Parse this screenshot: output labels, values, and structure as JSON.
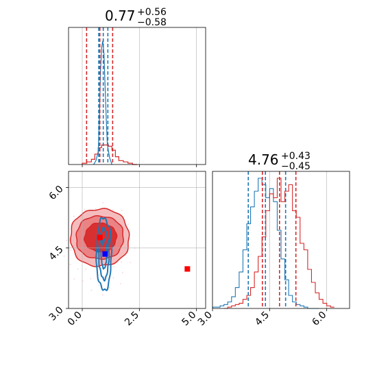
{
  "colors": {
    "red": "#d62728",
    "blue": "#1f77b4",
    "grid": "#b0b0b0",
    "fill_light": "#f4b5b6",
    "fill_mid": "#ea7c7e",
    "fill_dark": "#d62728",
    "blue_marker": "#0000ff",
    "red_marker": "#ff0000"
  },
  "panels": {
    "p1_title": {
      "main": "0.77",
      "sup": "+0.56",
      "sub": "−0.58"
    },
    "p2_title": {
      "main": "4.76",
      "sup": "+0.43",
      "sub": "−0.45"
    }
  },
  "chart_data": [
    {
      "type": "area",
      "panel": "top-left",
      "xlim": [
        -0.6,
        5.4
      ],
      "x_ticks": [
        0.0,
        2.5,
        5.0
      ],
      "grid": true,
      "series": [
        {
          "color": "red",
          "style": "step",
          "x": [
            0.0,
            0.2,
            0.4,
            0.55,
            0.7,
            0.85,
            1.0,
            1.15,
            1.3,
            1.45,
            1.6,
            1.8,
            2.0,
            2.2
          ],
          "values": [
            0.01,
            0.02,
            0.04,
            0.08,
            0.13,
            0.15,
            0.15,
            0.14,
            0.11,
            0.06,
            0.03,
            0.02,
            0.01,
            0.0
          ]
        },
        {
          "color": "blue",
          "style": "line",
          "x": [
            0.5,
            0.6,
            0.7,
            0.75,
            0.8,
            0.85,
            0.9,
            0.95,
            1.0,
            1.05,
            1.1,
            1.2,
            1.3
          ],
          "values": [
            0.0,
            0.03,
            0.1,
            0.35,
            0.72,
            0.9,
            0.95,
            0.85,
            0.6,
            0.35,
            0.15,
            0.05,
            0.0
          ]
        }
      ],
      "quantile_lines": [
        {
          "color": "red",
          "x": [
            0.19,
            0.77,
            1.33
          ]
        },
        {
          "color": "blue",
          "x": [
            0.72,
            0.92,
            1.12
          ]
        }
      ]
    },
    {
      "type": "area",
      "panel": "bottom-left",
      "xlim": [
        -0.6,
        5.4
      ],
      "ylim": [
        3.0,
        6.4
      ],
      "x_ticks": [
        0.0,
        2.5,
        5.0
      ],
      "y_ticks": [
        3.0,
        4.5,
        6.0
      ],
      "grid": true,
      "markers": [
        {
          "color": "red_marker",
          "x": 0.77,
          "y": 4.76
        },
        {
          "color": "blue_marker",
          "x": 1.0,
          "y": 4.35
        },
        {
          "color": "red_marker",
          "x": 4.6,
          "y": 3.98
        }
      ]
    },
    {
      "type": "area",
      "panel": "bottom-right",
      "xlim": [
        3.0,
        6.6
      ],
      "x_ticks": [
        3.0,
        4.5,
        6.0
      ],
      "grid": true,
      "series": [
        {
          "color": "blue",
          "style": "step",
          "x": [
            3.0,
            3.1,
            3.2,
            3.3,
            3.4,
            3.5,
            3.6,
            3.7,
            3.8,
            3.9,
            4.0,
            4.1,
            4.2,
            4.3,
            4.4,
            4.5,
            4.6,
            4.7,
            4.8,
            4.9,
            5.0,
            5.1,
            5.2,
            5.3,
            5.4,
            5.5,
            5.6,
            5.7
          ],
          "values": [
            0.01,
            0.01,
            0.02,
            0.03,
            0.05,
            0.09,
            0.16,
            0.28,
            0.45,
            0.65,
            0.78,
            0.9,
            1.0,
            0.95,
            0.85,
            0.92,
            0.82,
            0.6,
            0.38,
            0.22,
            0.1,
            0.05,
            0.03,
            0.02,
            0.01,
            0.0,
            0.0,
            0.0
          ]
        },
        {
          "color": "red",
          "style": "step",
          "x": [
            3.3,
            3.4,
            3.5,
            3.6,
            3.7,
            3.8,
            3.9,
            4.0,
            4.1,
            4.2,
            4.3,
            4.4,
            4.5,
            4.6,
            4.7,
            4.8,
            4.9,
            5.0,
            5.1,
            5.2,
            5.3,
            5.4,
            5.5,
            5.6,
            5.7,
            5.8,
            5.9,
            6.0,
            6.1
          ],
          "values": [
            0.0,
            0.01,
            0.02,
            0.03,
            0.04,
            0.07,
            0.1,
            0.16,
            0.28,
            0.4,
            0.55,
            0.75,
            0.88,
            0.85,
            1.0,
            0.82,
            0.9,
            0.95,
            0.75,
            0.7,
            0.5,
            0.45,
            0.3,
            0.2,
            0.12,
            0.07,
            0.04,
            0.02,
            0.01
          ]
        }
      ],
      "quantile_lines": [
        {
          "color": "blue",
          "x": [
            3.94,
            4.39,
            4.92
          ]
        },
        {
          "color": "red",
          "x": [
            4.31,
            4.76,
            5.19
          ]
        }
      ]
    }
  ],
  "density": {
    "red_levels": [
      {
        "fill": "fill_light",
        "cx": 0.77,
        "cy": 4.76,
        "rx": 1.3,
        "ry": 0.72
      },
      {
        "fill": "fill_mid",
        "cx": 0.77,
        "cy": 4.76,
        "rx": 1.05,
        "ry": 0.54
      },
      {
        "fill": "fill_dark",
        "cx": 0.8,
        "cy": 4.76,
        "rx": 0.7,
        "ry": 0.36
      }
    ],
    "blue_levels": [
      {
        "cx": 0.95,
        "cy": 4.35,
        "rx": 0.33,
        "ry": 0.9
      },
      {
        "cx": 0.95,
        "cy": 4.35,
        "rx": 0.22,
        "ry": 0.62
      },
      {
        "cx": 0.95,
        "cy": 4.35,
        "rx": 0.12,
        "ry": 0.35
      }
    ]
  }
}
